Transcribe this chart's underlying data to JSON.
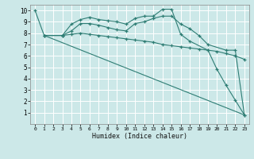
{
  "xlabel": "Humidex (Indice chaleur)",
  "bg_color": "#cce8e8",
  "grid_color": "#ffffff",
  "line_color": "#2e7d74",
  "xlim": [
    -0.5,
    23.5
  ],
  "ylim": [
    0,
    10.5
  ],
  "xticks": [
    0,
    1,
    2,
    3,
    4,
    5,
    6,
    7,
    8,
    9,
    10,
    11,
    12,
    13,
    14,
    15,
    16,
    17,
    18,
    19,
    20,
    21,
    22,
    23
  ],
  "yticks": [
    1,
    2,
    3,
    4,
    5,
    6,
    7,
    8,
    9,
    10
  ],
  "series": [
    {
      "x": [
        0,
        1,
        3,
        4,
        5,
        6,
        7,
        8,
        9,
        10,
        11,
        12,
        13,
        14,
        15,
        16,
        17,
        19,
        20,
        21,
        22,
        23
      ],
      "y": [
        10,
        7.8,
        7.8,
        8.8,
        9.2,
        9.4,
        9.2,
        9.1,
        9.0,
        8.8,
        9.3,
        9.5,
        9.5,
        10.1,
        10.1,
        7.9,
        7.3,
        6.5,
        4.8,
        3.4,
        2.1,
        0.8
      ]
    },
    {
      "x": [
        1,
        3,
        4,
        5,
        6,
        7,
        8,
        9,
        10,
        11,
        12,
        13,
        14,
        15,
        16,
        17,
        18,
        19,
        21,
        22,
        23
      ],
      "y": [
        7.8,
        7.8,
        8.2,
        8.85,
        8.85,
        8.7,
        8.5,
        8.3,
        8.2,
        8.85,
        9.0,
        9.3,
        9.5,
        9.5,
        8.8,
        8.4,
        7.8,
        7.0,
        6.5,
        6.5,
        0.8
      ]
    },
    {
      "x": [
        1,
        3,
        4,
        5,
        6,
        7,
        8,
        9,
        10,
        11,
        12,
        13,
        14,
        15,
        16,
        17,
        18,
        19,
        20,
        21,
        22,
        23
      ],
      "y": [
        7.8,
        7.8,
        7.9,
        8.0,
        7.9,
        7.8,
        7.7,
        7.6,
        7.5,
        7.4,
        7.3,
        7.2,
        7.0,
        6.9,
        6.8,
        6.7,
        6.6,
        6.5,
        6.4,
        6.2,
        6.0,
        5.7
      ]
    },
    {
      "x": [
        1,
        23
      ],
      "y": [
        7.8,
        0.8
      ]
    }
  ]
}
